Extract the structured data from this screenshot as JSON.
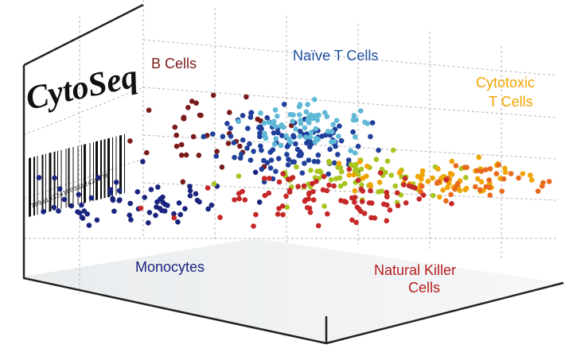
{
  "logo": {
    "text": "CytoSeq",
    "barcode_number": "7890193241003312430376"
  },
  "colors": {
    "b_cells": "#7a1a1a",
    "naive_t_blue": "#1f3f9a",
    "naive_t_cyan": "#5fb8d6",
    "cytotoxic": "#f0a400",
    "monocytes": "#1a237e",
    "nk": "#c62828",
    "lime": "#a6c51f",
    "orange": "#e86a1c"
  },
  "chart_data": {
    "type": "scatter",
    "title": "",
    "grid": true,
    "cluster_labels": [
      {
        "name": "B Cells",
        "text": "B Cells",
        "color": "#7a1a1a"
      },
      {
        "name": "Naive T Cells",
        "text": "Naïve T Cells",
        "color": "#1f4fa0"
      },
      {
        "name": "Cytotoxic T Cells",
        "lines": [
          "Cytotoxic",
          "T Cells"
        ],
        "color": "#f0a400"
      },
      {
        "name": "Monocytes",
        "text": "Monocytes",
        "color": "#1a237e"
      },
      {
        "name": "Natural Killer Cells",
        "lines": [
          "Natural Killer",
          "Cells"
        ],
        "color": "#b71c1c"
      }
    ],
    "series": [
      {
        "name": "Monocytes",
        "color": "#1a237e",
        "cx": 0.2,
        "cy": 0.3,
        "sx": 0.1,
        "sy": 0.08,
        "n": 70,
        "seed": 11
      },
      {
        "name": "B Cells",
        "color": "#7a1a1a",
        "cx": 0.36,
        "cy": 0.66,
        "sx": 0.06,
        "sy": 0.1,
        "n": 35,
        "seed": 23
      },
      {
        "name": "Naive T Cells",
        "color": "#1f3f9a",
        "cx": 0.5,
        "cy": 0.62,
        "sx": 0.07,
        "sy": 0.09,
        "n": 110,
        "seed": 37
      },
      {
        "name": "Naive T Cells",
        "color": "#5fb8d6",
        "cx": 0.54,
        "cy": 0.72,
        "sx": 0.06,
        "sy": 0.06,
        "n": 70,
        "seed": 41
      },
      {
        "name": "Cytotoxic T Cells",
        "color": "#a6c51f",
        "cx": 0.62,
        "cy": 0.43,
        "sx": 0.1,
        "sy": 0.07,
        "n": 70,
        "seed": 53
      },
      {
        "name": "Cytotoxic T Cells",
        "color": "#f0a400",
        "cx": 0.76,
        "cy": 0.43,
        "sx": 0.1,
        "sy": 0.06,
        "n": 60,
        "seed": 61
      },
      {
        "name": "Cytotoxic T Cells",
        "color": "#e86a1c",
        "cx": 0.86,
        "cy": 0.4,
        "sx": 0.07,
        "sy": 0.05,
        "n": 35,
        "seed": 67
      },
      {
        "name": "Natural Killer Cells",
        "color": "#c62828",
        "cx": 0.56,
        "cy": 0.33,
        "sx": 0.11,
        "sy": 0.07,
        "n": 90,
        "seed": 79
      }
    ]
  }
}
